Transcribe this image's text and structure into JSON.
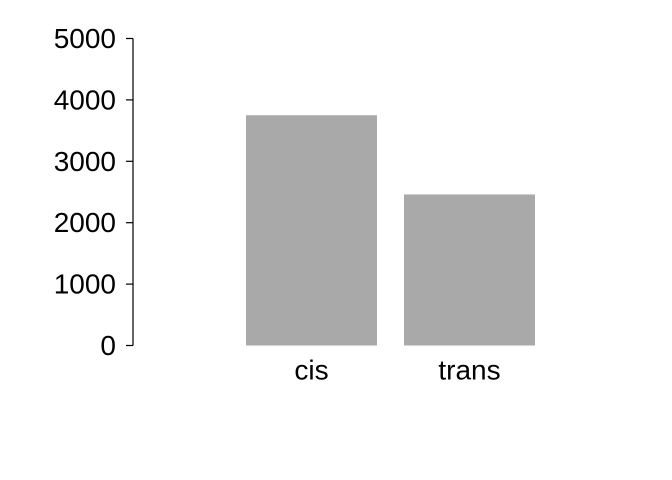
{
  "chart_data": {
    "type": "bar",
    "categories": [
      "cis",
      "trans"
    ],
    "values": [
      3750,
      2460
    ],
    "ylim": [
      0,
      5000
    ],
    "yticks": [
      {
        "value": 0,
        "label": "0"
      },
      {
        "value": 1000,
        "label": "1000"
      },
      {
        "value": 2000,
        "label": "2000"
      },
      {
        "value": 3000,
        "label": "3000"
      },
      {
        "value": 4000,
        "label": "4000"
      },
      {
        "value": 5000,
        "label": "5000"
      }
    ],
    "bar_color": "#a9a9a9",
    "grid": false,
    "title": "",
    "xlabel": "",
    "ylabel": ""
  }
}
